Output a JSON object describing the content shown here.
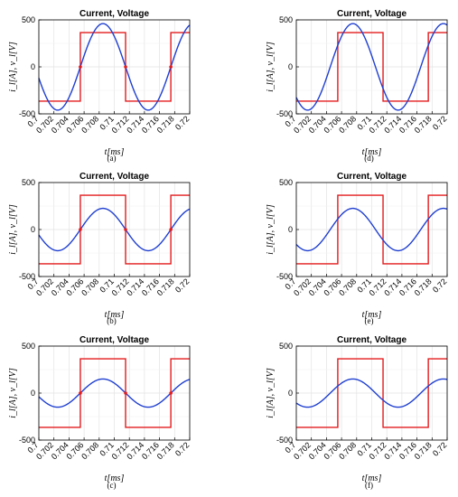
{
  "chart_data": [
    {
      "panel": "(a)",
      "type": "line",
      "title": "Current, Voltage",
      "xlabel": "t[ms]",
      "ylabel": "i_l[A], v_l[V]",
      "xlim": [
        0.7,
        0.72
      ],
      "ylim": [
        -500,
        500
      ],
      "xticks": [
        "0.7",
        "0.702",
        "0.704",
        "0.706",
        "0.708",
        "0.71",
        "0.712",
        "0.714",
        "0.716",
        "0.718",
        "0.72"
      ],
      "yticks": [
        "500",
        "0",
        "-500"
      ],
      "grid": true,
      "series": [
        {
          "kind": "square",
          "color": "#e31a1c",
          "amplitude": 365,
          "period_ms": 0.012,
          "rise_ms": 0.7055
        },
        {
          "kind": "sine",
          "color": "#1f3fd0",
          "amplitude": 460,
          "period_ms": 0.012,
          "zero_up_ms": 0.7055
        }
      ],
      "markers_ms": [
        0.7055,
        0.7115,
        0.7175
      ]
    },
    {
      "panel": "(b)",
      "type": "line",
      "title": "Current, Voltage",
      "xlabel": "t[ms]",
      "ylabel": "i_l[A], v_l[V]",
      "xlim": [
        0.7,
        0.72
      ],
      "ylim": [
        -500,
        500
      ],
      "xticks": [
        "0.7",
        "0.702",
        "0.704",
        "0.706",
        "0.708",
        "0.71",
        "0.712",
        "0.714",
        "0.716",
        "0.718",
        "0.72"
      ],
      "yticks": [
        "500",
        "0",
        "-500"
      ],
      "grid": true,
      "series": [
        {
          "kind": "square",
          "color": "#e31a1c",
          "amplitude": 365,
          "period_ms": 0.012,
          "rise_ms": 0.7055
        },
        {
          "kind": "sine",
          "color": "#1f3fd0",
          "amplitude": 225,
          "period_ms": 0.012,
          "zero_up_ms": 0.7055
        }
      ],
      "markers_ms": [
        0.7055,
        0.7115,
        0.7175
      ]
    },
    {
      "panel": "(c)",
      "type": "line",
      "title": "Current, Voltage",
      "xlabel": "t[ms]",
      "ylabel": "i_l[A], v_l[V]",
      "xlim": [
        0.7,
        0.72
      ],
      "ylim": [
        -500,
        500
      ],
      "xticks": [
        "0.7",
        "0.702",
        "0.704",
        "0.706",
        "0.708",
        "0.71",
        "0.712",
        "0.714",
        "0.716",
        "0.718",
        "0.72"
      ],
      "yticks": [
        "500",
        "0",
        "-500"
      ],
      "grid": true,
      "series": [
        {
          "kind": "square",
          "color": "#e31a1c",
          "amplitude": 365,
          "period_ms": 0.012,
          "rise_ms": 0.7055
        },
        {
          "kind": "sine",
          "color": "#1f3fd0",
          "amplitude": 150,
          "period_ms": 0.012,
          "zero_up_ms": 0.7055
        }
      ],
      "markers_ms": [
        0.7055,
        0.7115,
        0.7175
      ]
    },
    {
      "panel": "(d)",
      "type": "line",
      "title": "Current, Voltage",
      "xlabel": "t[ms]",
      "ylabel": "i_l[A], v_l[V]",
      "xlim": [
        0.7,
        0.72
      ],
      "ylim": [
        -500,
        500
      ],
      "xticks": [
        "0.7",
        "0.702",
        "0.704",
        "0.706",
        "0.708",
        "0.71",
        "0.712",
        "0.714",
        "0.716",
        "0.718",
        "0.72"
      ],
      "yticks": [
        "500",
        "0",
        "-500"
      ],
      "grid": true,
      "series": [
        {
          "kind": "square",
          "color": "#e31a1c",
          "amplitude": 365,
          "period_ms": 0.012,
          "rise_ms": 0.7055
        },
        {
          "kind": "sine",
          "color": "#1f3fd0",
          "amplitude": 460,
          "period_ms": 0.012,
          "zero_up_ms": 0.7045
        }
      ],
      "markers_ms": []
    },
    {
      "panel": "(e)",
      "type": "line",
      "title": "Current, Voltage",
      "xlabel": "t[ms]",
      "ylabel": "i_l[A], v_l[V]",
      "xlim": [
        0.7,
        0.72
      ],
      "ylim": [
        -500,
        500
      ],
      "xticks": [
        "0.7",
        "0.702",
        "0.704",
        "0.706",
        "0.708",
        "0.71",
        "0.712",
        "0.714",
        "0.716",
        "0.718",
        "0.72"
      ],
      "yticks": [
        "500",
        "0",
        "-500"
      ],
      "grid": true,
      "series": [
        {
          "kind": "square",
          "color": "#e31a1c",
          "amplitude": 365,
          "period_ms": 0.012,
          "rise_ms": 0.7055
        },
        {
          "kind": "sine",
          "color": "#1f3fd0",
          "amplitude": 225,
          "period_ms": 0.012,
          "zero_up_ms": 0.7045
        }
      ],
      "markers_ms": []
    },
    {
      "panel": "(f)",
      "type": "line",
      "title": "Current, Voltage",
      "xlabel": "t[ms]",
      "ylabel": "i_l[A], v_l[V]",
      "xlim": [
        0.7,
        0.72
      ],
      "ylim": [
        -500,
        500
      ],
      "xticks": [
        "0.7",
        "0.702",
        "0.704",
        "0.706",
        "0.708",
        "0.71",
        "0.712",
        "0.714",
        "0.716",
        "0.718",
        "0.72"
      ],
      "yticks": [
        "500",
        "0",
        "-500"
      ],
      "grid": true,
      "series": [
        {
          "kind": "square",
          "color": "#e31a1c",
          "amplitude": 365,
          "period_ms": 0.012,
          "rise_ms": 0.7055
        },
        {
          "kind": "sine",
          "color": "#1f3fd0",
          "amplitude": 150,
          "period_ms": 0.012,
          "zero_up_ms": 0.7045
        }
      ],
      "markers_ms": []
    }
  ]
}
